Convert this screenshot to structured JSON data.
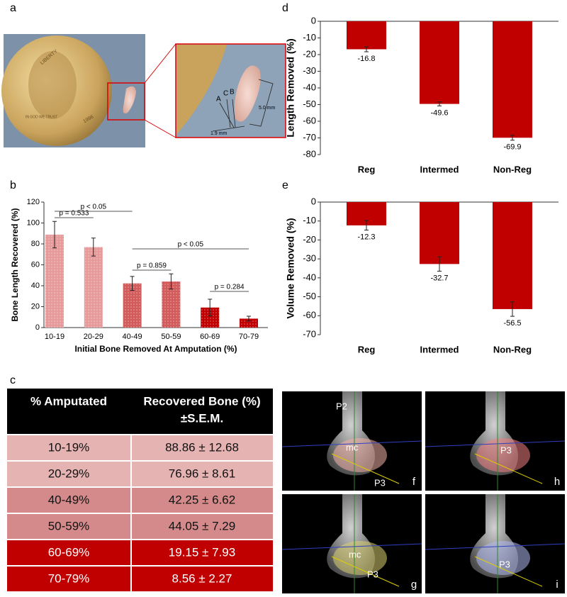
{
  "panel_labels": [
    "a",
    "b",
    "c",
    "d",
    "e"
  ],
  "panel_a": {
    "coin_texts": [
      "LIBERTY",
      "IN GOD WE TRUST",
      "1996"
    ],
    "inset_texts": [
      "A",
      "C",
      "B",
      "5.0 mm",
      "1.9 mm"
    ]
  },
  "chart_data": [
    {
      "type": "bar",
      "categories": [
        "10-19",
        "20-29",
        "40-49",
        "50-59",
        "60-69",
        "70-79"
      ],
      "values": [
        88.86,
        76.96,
        42.25,
        44.05,
        19.15,
        8.56
      ],
      "errors": [
        12.68,
        8.61,
        6.62,
        7.29,
        7.93,
        2.27
      ],
      "colors": [
        "#e79a9a",
        "#e79a9a",
        "#d25c5c",
        "#d25c5c",
        "#c00000",
        "#c00000"
      ],
      "ylabel": "Bone Length Recovered (%)",
      "xlabel": "Initial Bone Removed At Amputation (%)",
      "ylim": [
        0,
        120
      ],
      "yticks": [
        0,
        20,
        40,
        60,
        80,
        100,
        120
      ],
      "grid": false,
      "annotations": [
        "p = 0.533",
        "p < 0.05",
        "p < 0.05",
        "p = 0.859",
        "p = 0.284"
      ]
    },
    {
      "type": "bar",
      "categories": [
        "Reg",
        "Intermed",
        "Non-Reg"
      ],
      "values": [
        -16.8,
        -49.6,
        -69.9
      ],
      "errors": [
        1.5,
        1.2,
        1.5
      ],
      "colors": [
        "#c00000",
        "#c00000",
        "#c00000"
      ],
      "ylabel": "Length Removed (%)",
      "ylim": [
        -80,
        0
      ],
      "yticks": [
        0,
        -10,
        -20,
        -30,
        -40,
        -50,
        -60,
        -70,
        -80
      ],
      "grid": false
    },
    {
      "type": "bar",
      "categories": [
        "Reg",
        "Intermed",
        "Non-Reg"
      ],
      "values": [
        -12.3,
        -32.7,
        -56.5
      ],
      "errors": [
        2.5,
        3.8,
        3.8
      ],
      "colors": [
        "#c00000",
        "#c00000",
        "#c00000"
      ],
      "ylabel": "Volume Removed (%)",
      "ylim": [
        -70,
        0
      ],
      "yticks": [
        0,
        -10,
        -20,
        -30,
        -40,
        -50,
        -60,
        -70
      ],
      "grid": false
    }
  ],
  "table": {
    "header": [
      "% Amputated",
      "Recovered Bone (%)",
      "±S.E.M."
    ],
    "rows": [
      [
        "10-19%",
        "88.86 ± 12.68"
      ],
      [
        "20-29%",
        "76.96 ± 8.61"
      ],
      [
        "40-49%",
        "42.25 ± 6.62"
      ],
      [
        "50-59%",
        "44.05 ± 7.29"
      ],
      [
        "60-69%",
        "19.15 ± 7.93"
      ],
      [
        "70-79%",
        "8.56 ± 2.27"
      ]
    ],
    "row_colors": [
      "#e6b3b3",
      "#e6b3b3",
      "#d48a8a",
      "#d48a8a",
      "#c00000",
      "#c00000"
    ]
  },
  "xray_panels": [
    {
      "label": "f",
      "texts": [
        "P2",
        "mc",
        "P3"
      ]
    },
    {
      "label": "h",
      "texts": [
        "P3"
      ]
    },
    {
      "label": "g",
      "texts": [
        "mc",
        "P3"
      ]
    },
    {
      "label": "i",
      "texts": [
        "P3"
      ]
    }
  ]
}
